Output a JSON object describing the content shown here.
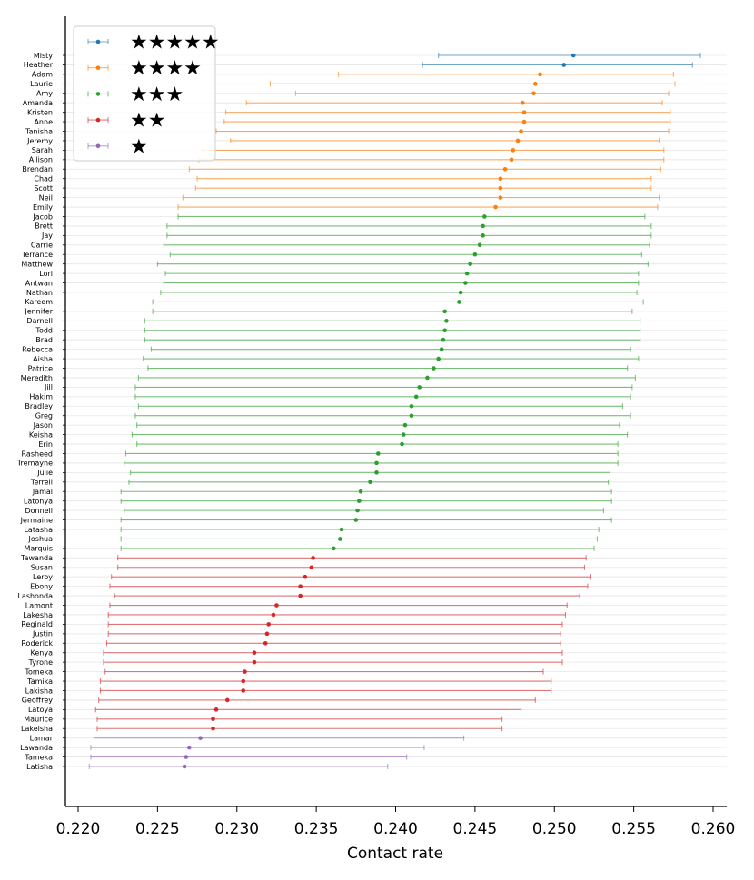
{
  "chart_data": {
    "type": "errorbar",
    "orientation": "horizontal",
    "xlabel": "Contact rate",
    "xlim": [
      0.219,
      0.261
    ],
    "xticks": [
      0.22,
      0.225,
      0.23,
      0.235,
      0.24,
      0.245,
      0.25,
      0.255,
      0.26
    ],
    "xtick_labels": [
      "0.220",
      "0.225",
      "0.230",
      "0.235",
      "0.240",
      "0.245",
      "0.250",
      "0.255",
      "0.260"
    ],
    "grid": "horizontal",
    "legend": {
      "placement": "top-left",
      "entries": [
        {
          "label": "★★★★★",
          "color": "#1f77b4"
        },
        {
          "label": "★★★★",
          "color": "#ff7f0e"
        },
        {
          "label": "★★★",
          "color": "#2ca02c"
        },
        {
          "label": "★★",
          "color": "#d62728"
        },
        {
          "label": "★",
          "color": "#9467bd"
        }
      ]
    },
    "series": [
      {
        "name": "★★★★★",
        "color": "#1f77b4",
        "points": [
          {
            "label": "Misty",
            "value": 0.2512,
            "low": 0.2427,
            "high": 0.2592
          },
          {
            "label": "Heather",
            "value": 0.2506,
            "low": 0.2417,
            "high": 0.2587
          }
        ]
      },
      {
        "name": "★★★★",
        "color": "#ff7f0e",
        "points": [
          {
            "label": "Adam",
            "value": 0.2491,
            "low": 0.2364,
            "high": 0.2575
          },
          {
            "label": "Laurie",
            "value": 0.2488,
            "low": 0.2321,
            "high": 0.2576
          },
          {
            "label": "Amy",
            "value": 0.2487,
            "low": 0.2337,
            "high": 0.2572
          },
          {
            "label": "Amanda",
            "value": 0.248,
            "low": 0.2306,
            "high": 0.2568
          },
          {
            "label": "Kristen",
            "value": 0.2481,
            "low": 0.2293,
            "high": 0.2573
          },
          {
            "label": "Anne",
            "value": 0.2481,
            "low": 0.2292,
            "high": 0.2573
          },
          {
            "label": "Tanisha",
            "value": 0.2479,
            "low": 0.2287,
            "high": 0.2572
          },
          {
            "label": "Jeremy",
            "value": 0.2477,
            "low": 0.2296,
            "high": 0.2566
          },
          {
            "label": "Sarah",
            "value": 0.2474,
            "low": 0.2278,
            "high": 0.2569
          },
          {
            "label": "Allison",
            "value": 0.2473,
            "low": 0.2276,
            "high": 0.2569
          },
          {
            "label": "Brendan",
            "value": 0.2469,
            "low": 0.227,
            "high": 0.2567
          },
          {
            "label": "Chad",
            "value": 0.2466,
            "low": 0.2275,
            "high": 0.2561
          },
          {
            "label": "Scott",
            "value": 0.2466,
            "low": 0.2274,
            "high": 0.2561
          },
          {
            "label": "Neil",
            "value": 0.2466,
            "low": 0.2266,
            "high": 0.2566
          },
          {
            "label": "Emily",
            "value": 0.2463,
            "low": 0.2263,
            "high": 0.2565
          }
        ]
      },
      {
        "name": "★★★",
        "color": "#2ca02c",
        "points": [
          {
            "label": "Jacob",
            "value": 0.2456,
            "low": 0.2263,
            "high": 0.2557
          },
          {
            "label": "Brett",
            "value": 0.2455,
            "low": 0.2256,
            "high": 0.2561
          },
          {
            "label": "Jay",
            "value": 0.2455,
            "low": 0.2256,
            "high": 0.2561
          },
          {
            "label": "Carrie",
            "value": 0.2453,
            "low": 0.2254,
            "high": 0.256
          },
          {
            "label": "Terrance",
            "value": 0.245,
            "low": 0.2258,
            "high": 0.2555
          },
          {
            "label": "Matthew",
            "value": 0.2447,
            "low": 0.225,
            "high": 0.2559
          },
          {
            "label": "Lori",
            "value": 0.2445,
            "low": 0.2255,
            "high": 0.2553
          },
          {
            "label": "Antwan",
            "value": 0.2444,
            "low": 0.2254,
            "high": 0.2553
          },
          {
            "label": "Nathan",
            "value": 0.2441,
            "low": 0.2252,
            "high": 0.2552
          },
          {
            "label": "Kareem",
            "value": 0.244,
            "low": 0.2247,
            "high": 0.2556
          },
          {
            "label": "Jennifer",
            "value": 0.2431,
            "low": 0.2247,
            "high": 0.2549
          },
          {
            "label": "Darnell",
            "value": 0.2432,
            "low": 0.2242,
            "high": 0.2554
          },
          {
            "label": "Todd",
            "value": 0.2431,
            "low": 0.2242,
            "high": 0.2554
          },
          {
            "label": "Brad",
            "value": 0.243,
            "low": 0.2242,
            "high": 0.2554
          },
          {
            "label": "Rebecca",
            "value": 0.2429,
            "low": 0.2246,
            "high": 0.2548
          },
          {
            "label": "Aisha",
            "value": 0.2427,
            "low": 0.2241,
            "high": 0.2553
          },
          {
            "label": "Patrice",
            "value": 0.2424,
            "low": 0.2244,
            "high": 0.2546
          },
          {
            "label": "Meredith",
            "value": 0.242,
            "low": 0.2238,
            "high": 0.2551
          },
          {
            "label": "Jill",
            "value": 0.2415,
            "low": 0.2236,
            "high": 0.2549
          },
          {
            "label": "Hakim",
            "value": 0.2413,
            "low": 0.2236,
            "high": 0.2548
          },
          {
            "label": "Bradley",
            "value": 0.241,
            "low": 0.2238,
            "high": 0.2543
          },
          {
            "label": "Greg",
            "value": 0.241,
            "low": 0.2236,
            "high": 0.2548
          },
          {
            "label": "Jason",
            "value": 0.2406,
            "low": 0.2237,
            "high": 0.2541
          },
          {
            "label": "Keisha",
            "value": 0.2405,
            "low": 0.2234,
            "high": 0.2546
          },
          {
            "label": "Erin",
            "value": 0.2404,
            "low": 0.2237,
            "high": 0.254
          },
          {
            "label": "Rasheed",
            "value": 0.2389,
            "low": 0.223,
            "high": 0.254
          },
          {
            "label": "Tremayne",
            "value": 0.2388,
            "low": 0.2229,
            "high": 0.254
          },
          {
            "label": "Julie",
            "value": 0.2388,
            "low": 0.2233,
            "high": 0.2535
          },
          {
            "label": "Terrell",
            "value": 0.2384,
            "low": 0.2232,
            "high": 0.2534
          },
          {
            "label": "Jamal",
            "value": 0.2378,
            "low": 0.2227,
            "high": 0.2536
          },
          {
            "label": "Latonya",
            "value": 0.2377,
            "low": 0.2227,
            "high": 0.2536
          },
          {
            "label": "Donnell",
            "value": 0.2376,
            "low": 0.2229,
            "high": 0.2531
          },
          {
            "label": "Jermaine",
            "value": 0.2375,
            "low": 0.2227,
            "high": 0.2536
          },
          {
            "label": "Latasha",
            "value": 0.2366,
            "low": 0.2227,
            "high": 0.2528
          },
          {
            "label": "Joshua",
            "value": 0.2365,
            "low": 0.2227,
            "high": 0.2527
          },
          {
            "label": "Marquis",
            "value": 0.2361,
            "low": 0.2227,
            "high": 0.2525
          }
        ]
      },
      {
        "name": "★★",
        "color": "#d62728",
        "points": [
          {
            "label": "Tawanda",
            "value": 0.2348,
            "low": 0.2225,
            "high": 0.252
          },
          {
            "label": "Susan",
            "value": 0.2347,
            "low": 0.2225,
            "high": 0.2519
          },
          {
            "label": "Leroy",
            "value": 0.2343,
            "low": 0.2221,
            "high": 0.2523
          },
          {
            "label": "Ebony",
            "value": 0.234,
            "low": 0.222,
            "high": 0.2521
          },
          {
            "label": "Lashonda",
            "value": 0.234,
            "low": 0.2223,
            "high": 0.2516
          },
          {
            "label": "Lamont",
            "value": 0.2325,
            "low": 0.222,
            "high": 0.2508
          },
          {
            "label": "Lakesha",
            "value": 0.2323,
            "low": 0.2219,
            "high": 0.2507
          },
          {
            "label": "Reginald",
            "value": 0.232,
            "low": 0.2219,
            "high": 0.2505
          },
          {
            "label": "Justin",
            "value": 0.2319,
            "low": 0.2219,
            "high": 0.2504
          },
          {
            "label": "Roderick",
            "value": 0.2318,
            "low": 0.2218,
            "high": 0.2504
          },
          {
            "label": "Kenya",
            "value": 0.2311,
            "low": 0.2216,
            "high": 0.2505
          },
          {
            "label": "Tyrone",
            "value": 0.2311,
            "low": 0.2216,
            "high": 0.2505
          },
          {
            "label": "Tomeka",
            "value": 0.2305,
            "low": 0.2217,
            "high": 0.2493
          },
          {
            "label": "Tamika",
            "value": 0.2304,
            "low": 0.2214,
            "high": 0.2498
          },
          {
            "label": "Lakisha",
            "value": 0.2304,
            "low": 0.2214,
            "high": 0.2498
          },
          {
            "label": "Geoffrey",
            "value": 0.2294,
            "low": 0.2213,
            "high": 0.2488
          },
          {
            "label": "Latoya",
            "value": 0.2287,
            "low": 0.2211,
            "high": 0.2479
          },
          {
            "label": "Maurice",
            "value": 0.2285,
            "low": 0.2212,
            "high": 0.2467
          },
          {
            "label": "Lakeisha",
            "value": 0.2285,
            "low": 0.2212,
            "high": 0.2467
          }
        ]
      },
      {
        "name": "★",
        "color": "#9467bd",
        "points": [
          {
            "label": "Lamar",
            "value": 0.2277,
            "low": 0.221,
            "high": 0.2443
          },
          {
            "label": "Lawanda",
            "value": 0.227,
            "low": 0.2208,
            "high": 0.2418
          },
          {
            "label": "Tameka",
            "value": 0.2268,
            "low": 0.2208,
            "high": 0.2407
          },
          {
            "label": "Latisha",
            "value": 0.2267,
            "low": 0.2207,
            "high": 0.2395
          }
        ]
      }
    ]
  }
}
